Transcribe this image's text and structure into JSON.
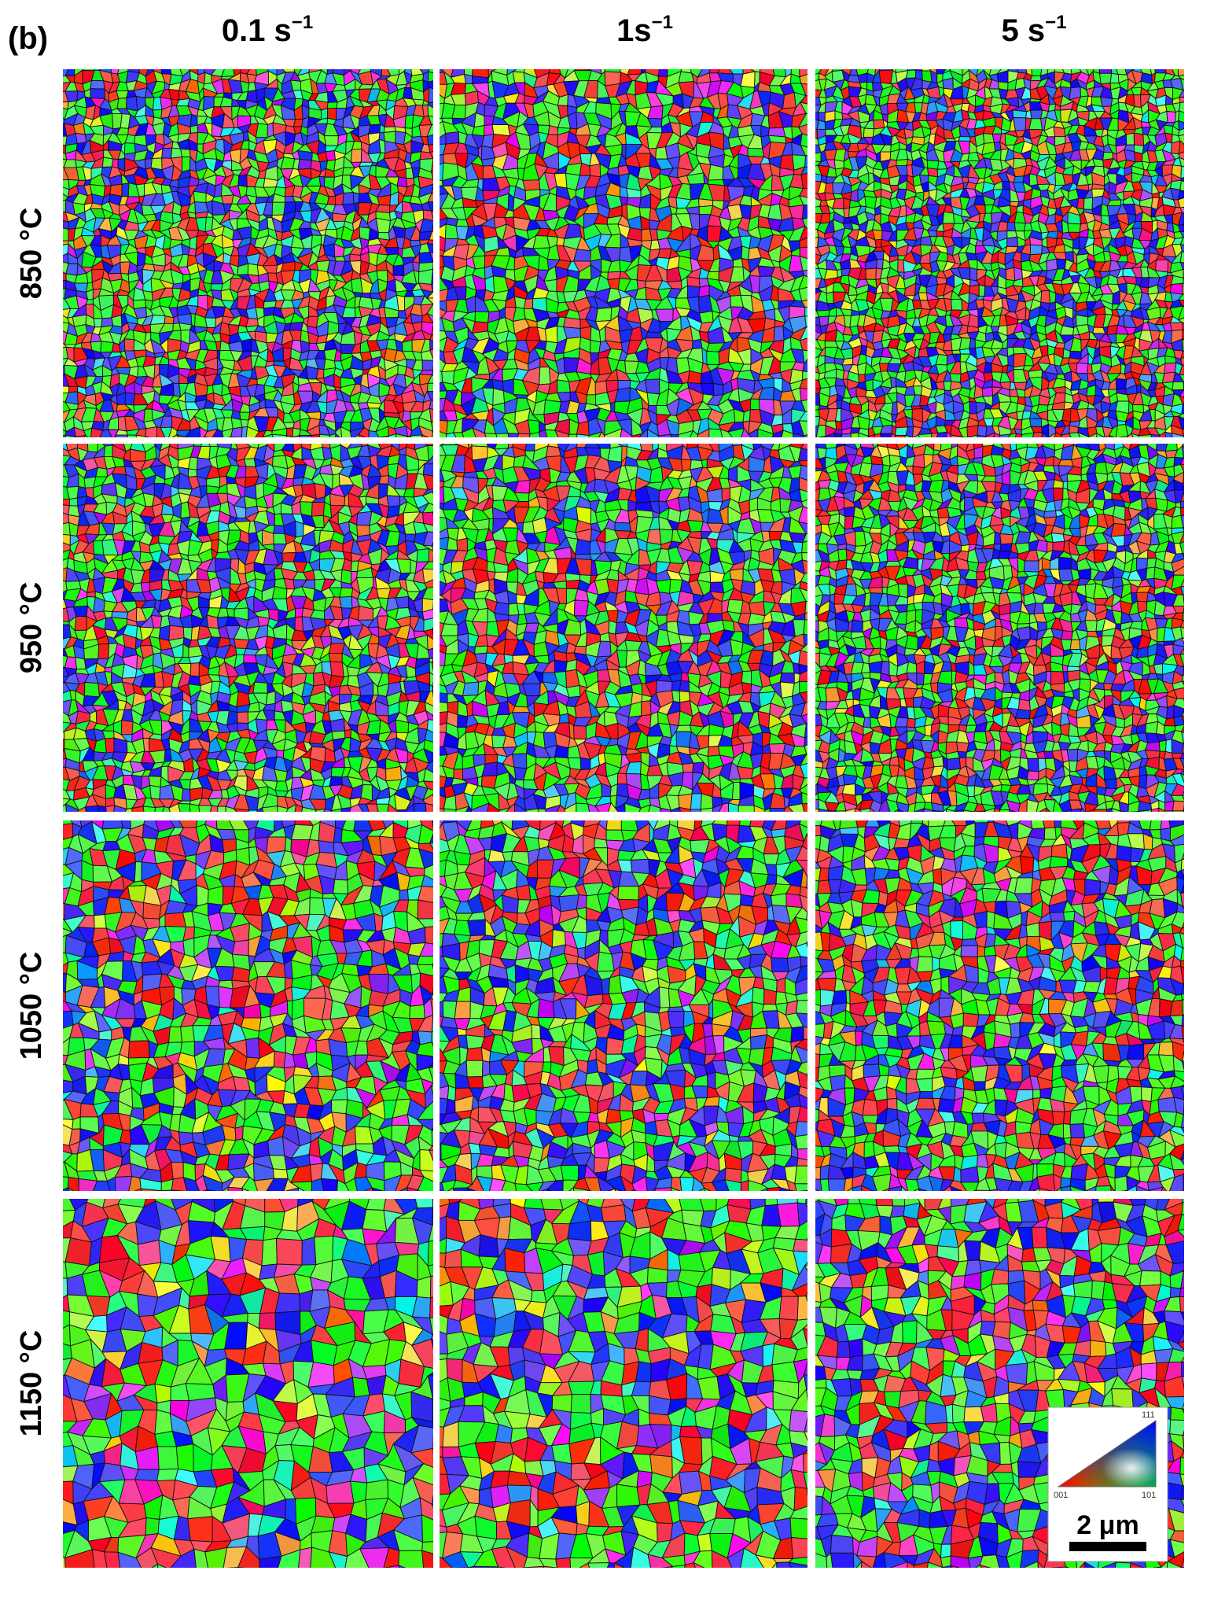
{
  "panel_label": "(b)",
  "columns": [
    {
      "label": "0.1 s",
      "exponent": "−1"
    },
    {
      "label": "1s",
      "exponent": "−1"
    },
    {
      "label": "5 s",
      "exponent": "−1"
    }
  ],
  "rows": [
    "850 °C",
    "950 °C",
    "1050 °C",
    "1150 °C"
  ],
  "legend": {
    "corners": [
      "111",
      "001",
      "101"
    ],
    "scale_bar": "2 μm"
  }
}
